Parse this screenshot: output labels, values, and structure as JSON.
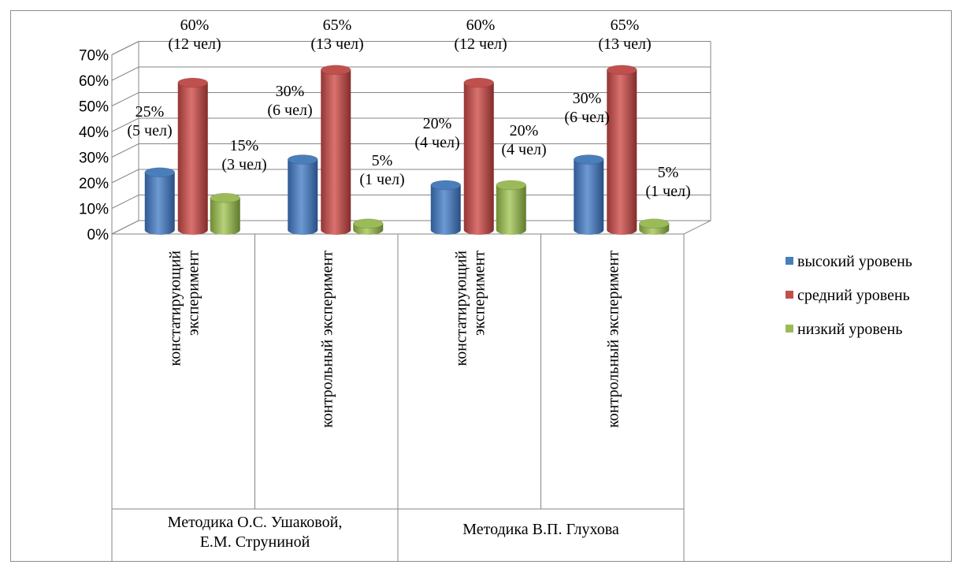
{
  "chart_data": {
    "type": "bar",
    "title": "",
    "xlabel": "",
    "ylabel": "",
    "ylim": [
      0,
      70
    ],
    "y_ticks": [
      "0%",
      "10%",
      "20%",
      "30%",
      "40%",
      "50%",
      "60%",
      "70%"
    ],
    "grid": true,
    "legend_position": "right",
    "groups": [
      {
        "label": "Методика О.С. Ушаковой, Е.М. Струниной",
        "label_lines": [
          "Методика О.С. Ушаковой,",
          "Е.М. Струниной"
        ]
      },
      {
        "label": "Методика В.П. Глухова",
        "label_lines": [
          "Методика В.П. Глухова"
        ]
      }
    ],
    "categories": [
      {
        "label": "констатирующий эксперимент",
        "label_lines": [
          "констатирующий",
          "эксперимент"
        ]
      },
      {
        "label": "контрольный эксперимент",
        "label_lines": [
          "контрольный эксперимент"
        ]
      },
      {
        "label": "констатирующий эксперимент",
        "label_lines": [
          "констатирующий",
          "эксперимент"
        ]
      },
      {
        "label": "контрольный эксперимент",
        "label_lines": [
          "контрольный эксперимент"
        ]
      }
    ],
    "series": [
      {
        "name": "высокий уровень",
        "color": "#4a7ebb",
        "values": [
          25,
          30,
          20,
          30
        ],
        "labels": [
          [
            "25%",
            "(5 чел)"
          ],
          [
            "30%",
            "(6 чел)"
          ],
          [
            "20%",
            "(4 чел)"
          ],
          [
            "30%",
            "(6 чел)"
          ]
        ]
      },
      {
        "name": "средний уровень",
        "color": "#c0504d",
        "values": [
          60,
          65,
          60,
          65
        ],
        "labels": [
          [
            "60%",
            "(12 чел)"
          ],
          [
            "65%",
            "(13 чел)"
          ],
          [
            "60%",
            "(12 чел)"
          ],
          [
            "65%",
            "(13 чел)"
          ]
        ]
      },
      {
        "name": "низкий уровень",
        "color": "#9bbb59",
        "values": [
          15,
          5,
          20,
          5
        ],
        "labels": [
          [
            "15%",
            "(3 чел)"
          ],
          [
            "5%",
            "(1 чел)"
          ],
          [
            "20%",
            "(4 чел)"
          ],
          [
            "5%",
            "(1 чел)"
          ]
        ]
      }
    ]
  }
}
